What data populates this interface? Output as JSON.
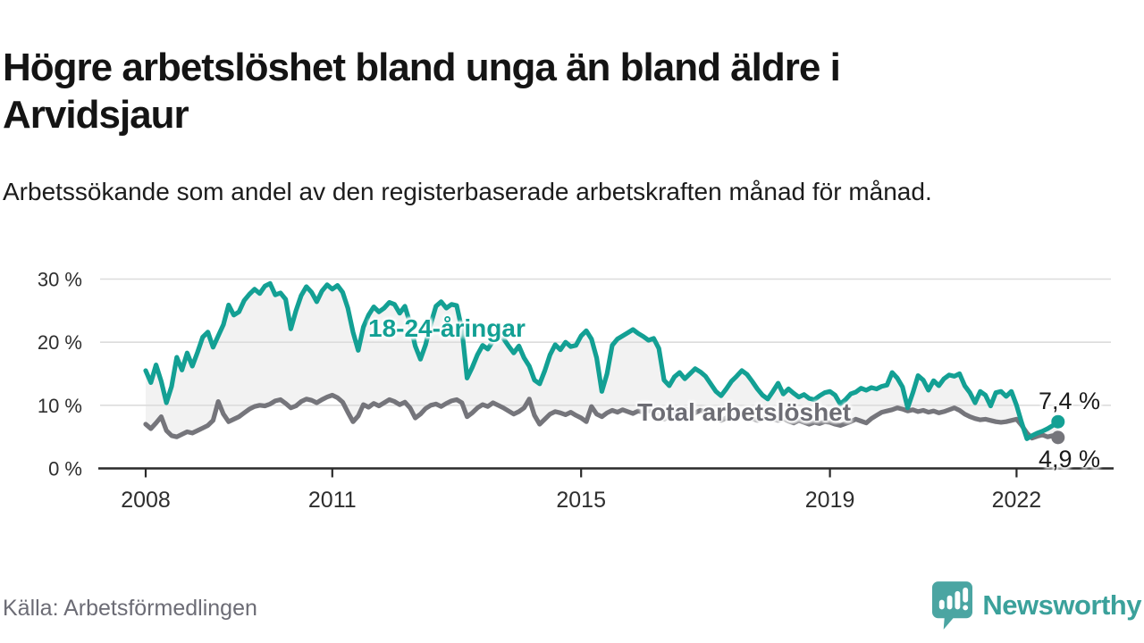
{
  "header": {
    "title": "Högre arbetslöshet bland unga än bland äldre i Arvidsjaur",
    "subtitle": "Arbetssökande som andel av den registerbaserade arbetskraften månad för månad."
  },
  "footer": {
    "source": "Källa: Arbetsförmedlingen",
    "brand_name": "Newsworthy"
  },
  "colors": {
    "youth_line": "#13a094",
    "total_line": "#75757b",
    "band_fill": "#f2f2f2",
    "gridline": "#dcdcdc",
    "axis": "#2a2a2a",
    "tick_label": "#2e2e2e",
    "brand_teal": "#4ba5a2"
  },
  "chart_data": {
    "type": "line",
    "title": "Högre arbetslöshet bland unga än bland äldre i Arvidsjaur",
    "subtitle": "Arbetssökande som andel av den registerbaserade arbetskraften månad för månad.",
    "unit": "%",
    "frequency": "monthly",
    "x_start": "2008-01",
    "x_end": "2022-09",
    "grid": "horizontal",
    "ylim": [
      0,
      31
    ],
    "y_ticks": [
      {
        "value": 0,
        "label": "0 %"
      },
      {
        "value": 10,
        "label": "10 %"
      },
      {
        "value": 20,
        "label": "20 %"
      },
      {
        "value": 30,
        "label": "30 %"
      }
    ],
    "x_ticks": [
      {
        "year": 2008,
        "label": "2008"
      },
      {
        "year": 2011,
        "label": "2011"
      },
      {
        "year": 2015,
        "label": "2015"
      },
      {
        "year": 2019,
        "label": "2019"
      },
      {
        "year": 2022,
        "label": "2022"
      }
    ],
    "series": [
      {
        "name": "18-24-åringar",
        "color": "#13a094",
        "end_label": "7,4 %",
        "end_value": 7.4,
        "values": [
          15.5,
          13.6,
          16.4,
          13.8,
          10.4,
          13.0,
          17.6,
          15.6,
          18.3,
          16.2,
          18.4,
          20.8,
          21.6,
          19.2,
          21.0,
          22.8,
          25.9,
          24.3,
          24.8,
          26.6,
          27.6,
          28.4,
          27.7,
          28.9,
          29.3,
          27.5,
          27.8,
          26.8,
          22.1,
          25.0,
          27.4,
          28.8,
          27.9,
          26.4,
          28.1,
          29.1,
          28.4,
          29.0,
          27.9,
          25.4,
          21.6,
          18.7,
          22.4,
          24.3,
          25.6,
          24.8,
          25.4,
          26.3,
          26.0,
          24.6,
          25.7,
          23.0,
          19.4,
          17.3,
          19.6,
          22.9,
          25.7,
          26.4,
          25.4,
          26.0,
          25.8,
          22.0,
          14.3,
          16.0,
          18.0,
          19.5,
          18.9,
          20.2,
          21.0,
          20.6,
          19.4,
          18.3,
          19.4,
          17.5,
          16.2,
          14.0,
          13.4,
          15.5,
          18.0,
          19.6,
          18.8,
          20.0,
          19.3,
          19.5,
          21.0,
          21.8,
          20.5,
          17.5,
          12.2,
          15.0,
          19.5,
          20.5,
          21.0,
          21.5,
          22.0,
          21.4,
          20.9,
          20.3,
          20.6,
          19.0,
          14.0,
          13.1,
          14.5,
          15.2,
          14.2,
          15.0,
          15.8,
          15.3,
          14.6,
          13.4,
          12.2,
          11.5,
          12.6,
          13.8,
          14.6,
          15.5,
          14.9,
          13.8,
          12.6,
          11.6,
          11.0,
          12.2,
          13.5,
          11.8,
          12.6,
          11.9,
          11.3,
          11.7,
          11.1,
          10.9,
          11.5,
          12.0,
          12.2,
          11.6,
          10.2,
          10.9,
          11.8,
          12.1,
          12.7,
          12.4,
          12.8,
          12.6,
          13.0,
          13.2,
          15.2,
          14.3,
          12.9,
          9.6,
          12.0,
          14.7,
          14.0,
          12.4,
          13.9,
          13.1,
          14.2,
          14.8,
          14.6,
          15.0,
          13.1,
          12.0,
          10.4,
          12.2,
          11.6,
          9.9,
          12.0,
          12.2,
          11.4,
          12.2,
          10.0,
          7.2,
          4.7,
          5.2,
          5.6,
          5.9,
          6.3,
          6.8,
          7.4
        ]
      },
      {
        "name": "Total arbetslöshet",
        "color": "#75757b",
        "end_label": "4,9 %",
        "end_value": 4.9,
        "values": [
          7.0,
          6.3,
          7.2,
          8.2,
          6.0,
          5.2,
          5.0,
          5.4,
          5.8,
          5.6,
          6.0,
          6.4,
          6.8,
          7.6,
          10.6,
          8.6,
          7.4,
          7.8,
          8.2,
          8.8,
          9.4,
          9.8,
          10.0,
          9.9,
          10.2,
          10.7,
          10.9,
          10.3,
          9.6,
          9.9,
          10.6,
          11.0,
          10.8,
          10.4,
          10.9,
          11.3,
          11.6,
          11.2,
          10.5,
          8.9,
          7.4,
          8.3,
          10.1,
          9.7,
          10.3,
          9.9,
          10.4,
          10.9,
          10.6,
          10.1,
          10.5,
          9.6,
          8.0,
          8.6,
          9.5,
          10.0,
          10.2,
          9.8,
          10.3,
          10.7,
          10.9,
          10.4,
          8.2,
          8.8,
          9.6,
          10.1,
          9.8,
          10.4,
          10.0,
          9.6,
          9.1,
          8.6,
          9.0,
          9.6,
          11.0,
          8.4,
          7.0,
          7.8,
          8.6,
          9.0,
          8.8,
          8.5,
          8.9,
          8.4,
          8.0,
          7.4,
          9.8,
          8.6,
          8.2,
          8.8,
          9.2,
          8.9,
          9.3,
          9.0,
          8.7,
          9.1,
          8.9,
          9.2,
          8.8,
          8.4,
          7.8,
          8.2,
          8.8,
          9.0,
          9.4,
          9.1,
          8.8,
          9.2,
          9.0,
          8.6,
          8.2,
          7.6,
          8.0,
          8.4,
          8.8,
          8.5,
          8.2,
          7.9,
          7.6,
          7.9,
          8.2,
          7.8,
          7.6,
          7.9,
          7.5,
          7.2,
          7.6,
          7.3,
          7.0,
          7.3,
          7.1,
          7.4,
          7.3,
          7.0,
          6.8,
          7.1,
          7.4,
          7.8,
          7.5,
          7.2,
          7.9,
          8.4,
          8.9,
          9.1,
          9.3,
          9.6,
          9.4,
          9.1,
          9.3,
          9.0,
          9.2,
          8.9,
          9.1,
          8.8,
          9.0,
          9.3,
          9.6,
          9.2,
          8.6,
          8.2,
          7.9,
          7.7,
          7.8,
          7.6,
          7.4,
          7.3,
          7.4,
          7.6,
          7.8,
          6.8,
          5.6,
          4.8,
          5.1,
          5.3,
          5.0,
          5.2,
          4.9
        ]
      }
    ],
    "legend_position": "inline-labels"
  }
}
